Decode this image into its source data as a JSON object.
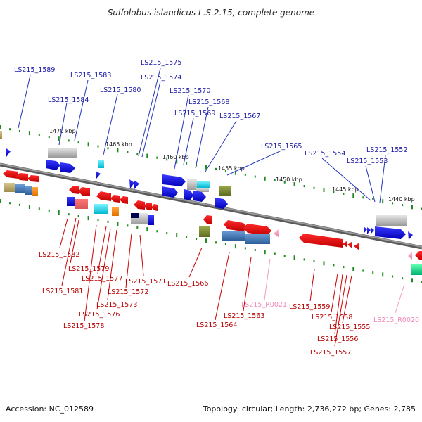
{
  "title": "Sulfolobus islandicus L.S.2.15, complete genome",
  "footer": {
    "accession": "Accession: NC_012589",
    "topology": "Topology: circular; Length: 2,736,272 bp; Genes: 2,785"
  },
  "ticks": [
    "1470 kbp",
    "1465 kbp",
    "1460 kbp",
    "1455 kbp",
    "1450 kbp",
    "1445 kbp",
    "1440 kbp"
  ],
  "labels": {
    "top": [
      "LS215_1589",
      "LS215_1583",
      "LS215_1584",
      "LS215_1580",
      "LS215_1575",
      "LS215_1574",
      "LS215_1570",
      "LS215_1568",
      "LS215_1569",
      "LS215_1567",
      "LS215_1565",
      "LS215_1554",
      "LS215_1553",
      "LS215_1552"
    ],
    "bottom": [
      "LS215_1582",
      "LS215_1579",
      "LS215_1581",
      "LS215_1577",
      "LS215_1571",
      "LS215_1572",
      "LS215_1573",
      "LS215_1576",
      "LS215_1578",
      "LS215_1566",
      "LS215_1563",
      "LS215_1564",
      "LS215_1559",
      "LS215_1558",
      "LS215_1555",
      "LS215_1556",
      "LS215_1557"
    ],
    "rna": [
      "LS215_R0021",
      "LS215_R0020"
    ]
  },
  "colors": {
    "forward_gene": "#1010e0",
    "reverse_gene": "#e00000",
    "rna": "#f08ab8",
    "backbone": "#7a7a7a",
    "tick": "#1f8a1f"
  }
}
